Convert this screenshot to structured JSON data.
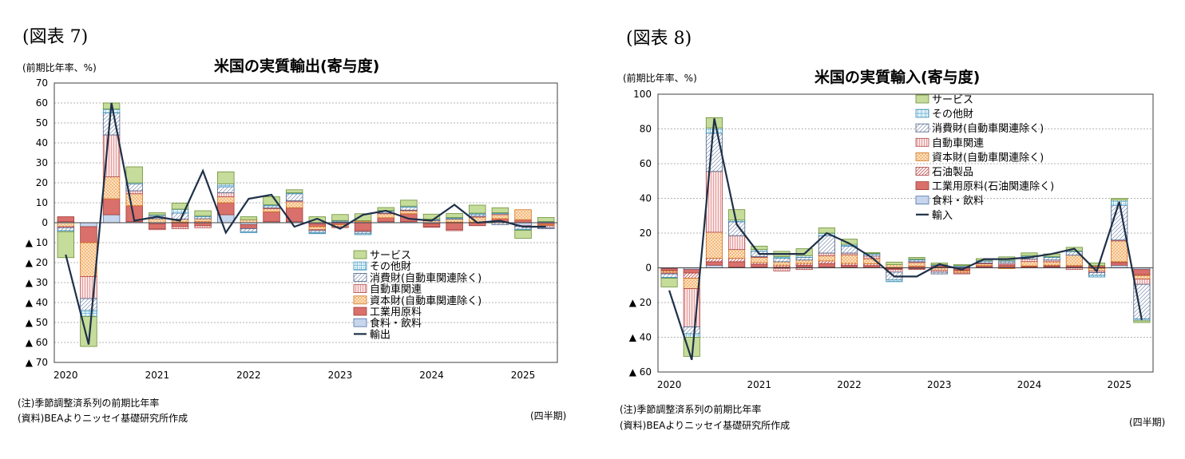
{
  "patterns": {
    "services": {
      "fill": "#c5dc9a",
      "stroke": "#6d8f3a",
      "pattern": "solid"
    },
    "other": {
      "fill": "#ffffff",
      "stroke": "#3f8fb5",
      "pattern": "grid",
      "line": "#5aaed2"
    },
    "consumer": {
      "fill": "#ffffff",
      "stroke": "#4a5f85",
      "pattern": "diag",
      "line": "#7b8cad"
    },
    "auto": {
      "fill": "#fce4e4",
      "stroke": "#b04848",
      "pattern": "vert",
      "line": "#d07070"
    },
    "capital": {
      "fill": "#fde2c2",
      "stroke": "#d2701b",
      "pattern": "dots",
      "line": "#e98a2c"
    },
    "petroleum": {
      "fill": "#ffffff",
      "stroke": "#a84040",
      "pattern": "diag2",
      "line": "#c05050"
    },
    "industrial": {
      "fill": "#d9706b",
      "stroke": "#a23c38",
      "pattern": "solid"
    },
    "food": {
      "fill": "#c7d6ec",
      "stroke": "#4c70a8",
      "pattern": "solid"
    },
    "line": "#1f3048"
  },
  "charts": [
    {
      "fig_label": "(図表 7)",
      "unit_label": "(前期比年率、%)",
      "note1": "(注)季節調整済系列の前期比年率",
      "note2": "(資料)BEAよりニッセイ基礎研究所作成",
      "xunit": "(四半期)",
      "chart_data": {
        "type": "bar",
        "title": "米国の実質輸出(寄与度)",
        "ylim": [
          -70,
          70
        ],
        "yticks": [
          70,
          60,
          50,
          40,
          30,
          20,
          10,
          0,
          -10,
          -20,
          -30,
          -40,
          -50,
          -60,
          -70
        ],
        "ytick_labels": [
          "70",
          "60",
          "50",
          "40",
          "30",
          "20",
          "10",
          "0",
          "▲ 10",
          "▲ 20",
          "▲ 30",
          "▲ 40",
          "▲ 50",
          "▲ 60",
          "▲ 70"
        ],
        "year_labels": [
          "2020",
          "2021",
          "2022",
          "2023",
          "2024",
          "2025"
        ],
        "categories": [
          "2020Q1",
          "2020Q2",
          "2020Q3",
          "2020Q4",
          "2021Q1",
          "2021Q2",
          "2021Q3",
          "2021Q4",
          "2022Q1",
          "2022Q2",
          "2022Q3",
          "2022Q4",
          "2023Q1",
          "2023Q2",
          "2023Q3",
          "2023Q4",
          "2024Q1",
          "2024Q2",
          "2024Q3",
          "2024Q4",
          "2025Q1",
          "2025Q2"
        ],
        "series": [
          {
            "name": "食料・飲料",
            "key": "food",
            "values": [
              0.5,
              -2,
              4,
              0.5,
              -0.5,
              0.3,
              0.5,
              4,
              -1,
              0.5,
              0.5,
              -0.5,
              0.3,
              0.5,
              0.5,
              0.5,
              -0.5,
              0.3,
              0.3,
              0.5,
              -1.5,
              0.3
            ]
          },
          {
            "name": "工業用原料",
            "key": "industrial",
            "values": [
              2.5,
              -8,
              8,
              8,
              -2.5,
              -2,
              -1.5,
              6,
              -1.5,
              5,
              7,
              -1.5,
              -1,
              -4,
              2,
              4,
              -1.5,
              -3.5,
              -1.5,
              1.5,
              1.5,
              -1
            ]
          },
          {
            "name": "資本財(自動車関連除く)",
            "key": "capital",
            "values": [
              -2,
              -17,
              11,
              6,
              2,
              1.5,
              1.5,
              3,
              1.5,
              1.5,
              3,
              -1.5,
              -1,
              0.5,
              2,
              1.5,
              1,
              1.5,
              2.5,
              2,
              5,
              -0.5
            ]
          },
          {
            "name": "自動車関連",
            "key": "auto",
            "values": [
              -0.5,
              -11,
              21,
              1.5,
              -0.5,
              -1,
              -1,
              2,
              -0.5,
              0.5,
              0.5,
              -0.5,
              -0.5,
              -0.5,
              0.3,
              0.3,
              -0.3,
              -0.5,
              0.5,
              0.5,
              -0.3,
              -1
            ]
          },
          {
            "name": "消費財(自動車関連除く)",
            "key": "consumer",
            "values": [
              -1.5,
              -6,
              11,
              3.5,
              1.5,
              3,
              1,
              3,
              -1.5,
              1,
              3.5,
              -1,
              0.5,
              -1,
              1,
              1.5,
              0.5,
              0.5,
              1,
              -1,
              -1.5,
              -0.5
            ]
          },
          {
            "name": "その他財",
            "key": "other",
            "values": [
              -0.5,
              -3,
              2,
              0.5,
              0.5,
              2,
              0.5,
              1.5,
              -0.5,
              0.5,
              0.5,
              -0.5,
              0.3,
              -0.5,
              0.3,
              0.5,
              0.3,
              0.3,
              0.5,
              0.5,
              -0.5,
              0.3
            ]
          },
          {
            "name": "サービス",
            "key": "services",
            "values": [
              -13,
              -15,
              3,
              8,
              1,
              3,
              2.5,
              6,
              1.5,
              4,
              1.5,
              3,
              3,
              3.5,
              1.5,
              3,
              2.5,
              2,
              4,
              2.5,
              -4,
              2
            ]
          }
        ],
        "line": {
          "name": "輸出",
          "values": [
            -16,
            -61,
            60,
            1,
            3,
            1,
            26,
            -5,
            12,
            14,
            -2,
            2,
            -3,
            4,
            6,
            2,
            1,
            9,
            0,
            1,
            -2,
            -2
          ]
        }
      }
    },
    {
      "fig_label": "(図表 8)",
      "unit_label": "(前期比年率、%)",
      "note1": "(注)季節調整済系列の前期比年率",
      "note2": "(資料)BEAよりニッセイ基礎研究所作成",
      "xunit": "(四半期)",
      "chart_data": {
        "type": "bar",
        "title": "米国の実質輸入(寄与度)",
        "ylim": [
          -60,
          100
        ],
        "yticks": [
          100,
          80,
          60,
          40,
          20,
          0,
          -20,
          -40,
          -60
        ],
        "ytick_labels": [
          "100",
          "80",
          "60",
          "40",
          "20",
          "0",
          "▲ 20",
          "▲ 40",
          "▲ 60"
        ],
        "year_labels": [
          "2020",
          "2021",
          "2022",
          "2023",
          "2024",
          "2025"
        ],
        "categories": [
          "2020Q1",
          "2020Q2",
          "2020Q3",
          "2020Q4",
          "2021Q1",
          "2021Q2",
          "2021Q3",
          "2021Q4",
          "2022Q1",
          "2022Q2",
          "2022Q3",
          "2022Q4",
          "2023Q1",
          "2023Q2",
          "2023Q3",
          "2023Q4",
          "2024Q1",
          "2024Q2",
          "2024Q3",
          "2024Q4",
          "2025Q1",
          "2025Q2"
        ],
        "series": [
          {
            "name": "食料・飲料",
            "key": "food",
            "values": [
              -0.5,
              -1,
              1.5,
              0.5,
              0.5,
              -0.3,
              0.5,
              0.5,
              0.5,
              0.3,
              0.3,
              -0.5,
              0.3,
              0.3,
              0.3,
              0.3,
              0.3,
              0.5,
              0.3,
              0.3,
              1.5,
              -1
            ]
          },
          {
            "name": "工業用原料(石油関連除く)",
            "key": "industrial",
            "values": [
              -1,
              -2,
              2,
              3,
              1.5,
              0.5,
              1,
              2,
              1,
              1,
              -0.5,
              1,
              0.5,
              -1.5,
              0.5,
              1,
              0.5,
              0.5,
              0.5,
              1,
              1.5,
              -3
            ]
          },
          {
            "name": "石油製品",
            "key": "petroleum",
            "values": [
              -0.5,
              -3,
              2,
              2,
              1,
              1,
              1,
              1.5,
              1,
              1,
              -0.5,
              -0.5,
              0.5,
              -0.5,
              0.5,
              0.5,
              0.3,
              0.5,
              0.5,
              -0.3,
              0.5,
              -0.5
            ]
          },
          {
            "name": "資本財(自動車関連除く)",
            "key": "capital",
            "values": [
              -1,
              -6,
              15,
              5,
              3,
              2,
              2,
              3,
              5,
              3,
              1.5,
              2,
              -1.5,
              -1,
              1,
              -0.5,
              2.5,
              2,
              6,
              -1.5,
              12,
              -2
            ]
          },
          {
            "name": "自動車関連",
            "key": "auto",
            "values": [
              -0.5,
              -22,
              35,
              8,
              0.5,
              -1.5,
              -1,
              1.5,
              1,
              1.5,
              -1.5,
              0.5,
              -1,
              -0.5,
              0.5,
              1,
              1.5,
              1,
              -1,
              -1,
              0.5,
              -3
            ]
          },
          {
            "name": "消費財(自動車関連除く)",
            "key": "consumer",
            "values": [
              -2,
              -4,
              22,
              8,
              3,
              2,
              1.5,
              10,
              4,
              1,
              -4.5,
              1,
              -1,
              0.5,
              1,
              1,
              1.5,
              1.5,
              2,
              -1.5,
              20,
              -20
            ]
          },
          {
            "name": "その他財",
            "key": "other",
            "values": [
              -0.5,
              -2,
              3,
              1,
              1,
              1,
              1,
              1.5,
              1,
              0.5,
              -1,
              0.5,
              0.5,
              0.5,
              0.5,
              0.5,
              0.5,
              0.5,
              0.5,
              -1,
              3,
              -1
            ]
          },
          {
            "name": "サービス",
            "key": "services",
            "values": [
              -5,
              -11,
              6,
              6,
              2,
              3,
              4,
              3,
              3,
              0.5,
              1.5,
              1,
              1,
              0.5,
              1,
              2,
              1.5,
              1.5,
              2,
              1.5,
              1,
              -1
            ]
          }
        ],
        "line": {
          "name": "輸入",
          "values": [
            -13,
            -53,
            86,
            25,
            8,
            8,
            8,
            20,
            14,
            6,
            -5,
            -5,
            2,
            -1,
            5,
            5,
            6,
            8,
            11,
            -2,
            38,
            -30
          ]
        }
      }
    }
  ]
}
